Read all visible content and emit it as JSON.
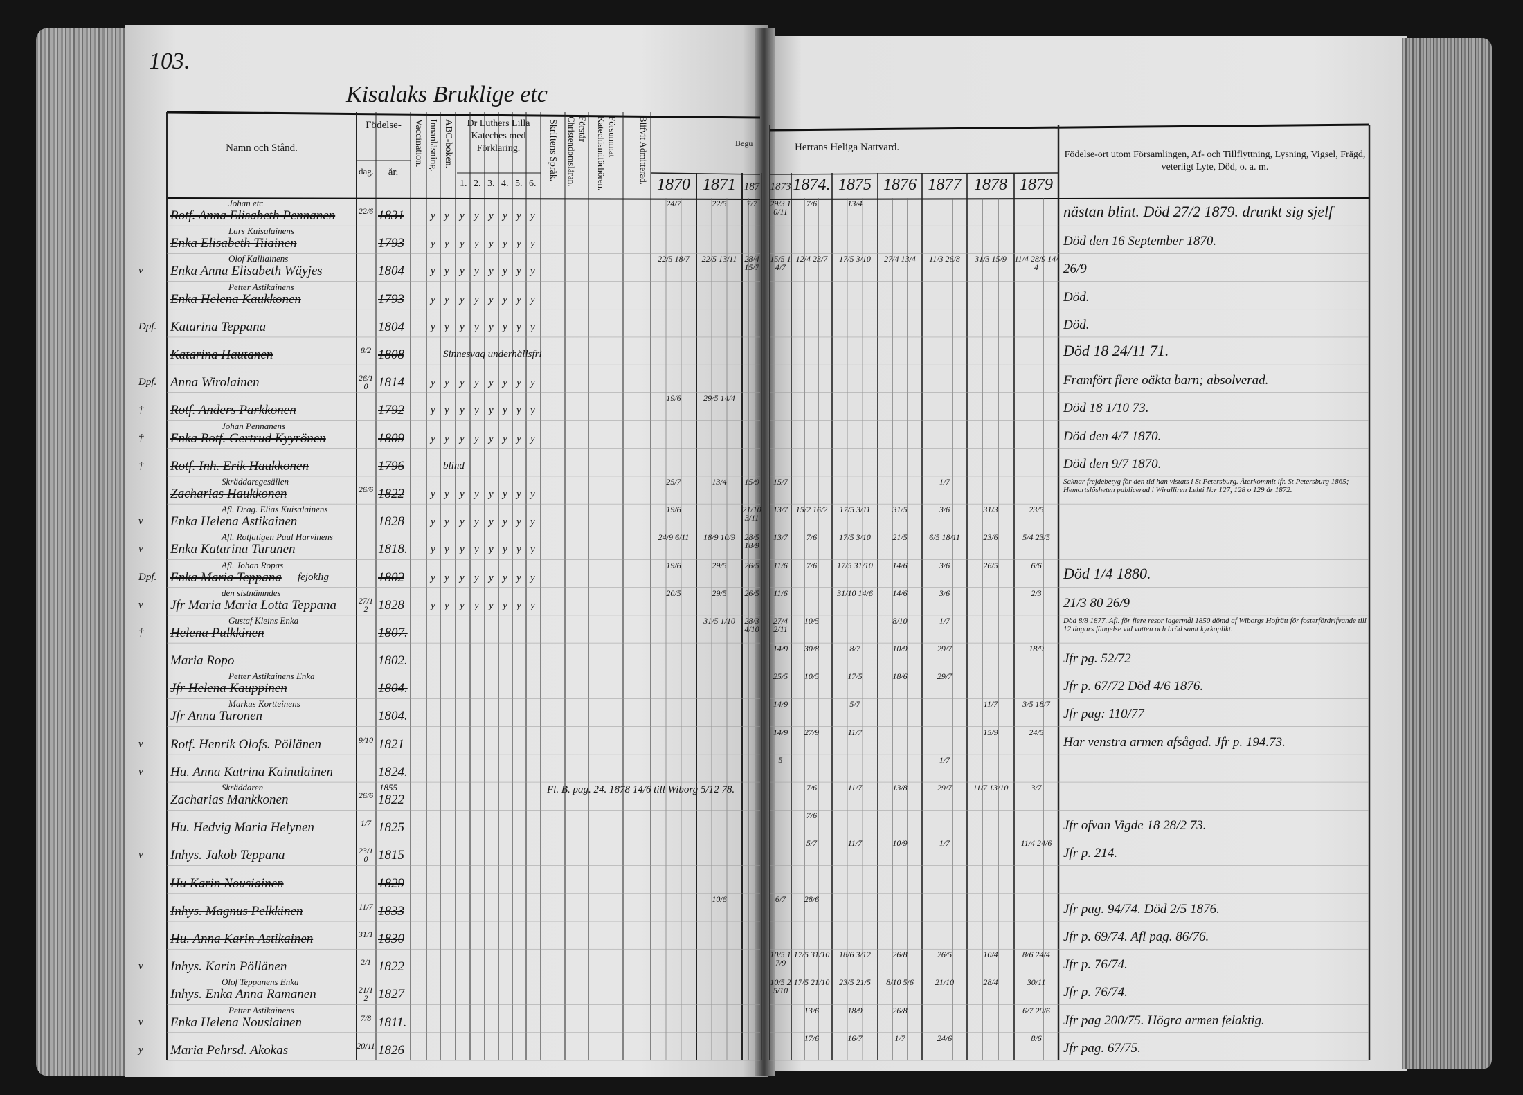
{
  "page_number": "103.",
  "title": "Kisalaks Bruklige etc",
  "header": {
    "name": "Namn och Stånd.",
    "birth": "Födelse-",
    "birth_day": "dag.",
    "birth_year": "år.",
    "vaccination": "Vaccination.",
    "innanlasning": "Innanläsning.",
    "abc": "ABC-boken.",
    "catechism": "Dr Luthers Lilla Kateches med Förklaring.",
    "catechism_parts": [
      "1.",
      "2.",
      "3.",
      "4.",
      "5.",
      "6."
    ],
    "scripture": "Skriftens Språk.",
    "christendom": "Förstår Christendomsläran.",
    "neglected": "Försummat Katechismiförhören.",
    "admitted": "Blifvit Admitterad.",
    "begun": "Begu",
    "communion": "Herrans Heliga Nattvard.",
    "years": [
      "1870",
      "1871",
      "187",
      "1873",
      "1874.",
      "1875",
      "1876",
      "1877",
      "1878",
      "1879"
    ],
    "remarks": "Födelse-ort utom Församlingen, Af- och Tillflyttning, Lysning, Vigsel, Frägd, veterligt Lyte, Död, o. a. m."
  },
  "mark": "y",
  "rows": [
    {
      "name": "Rotf. Anna Elisabeth Pennanen",
      "struck": true,
      "note": "Johan etc",
      "day": "22/6",
      "year": "1831",
      "marked": true,
      "communion": [
        "24/7",
        "22/5",
        "7/7",
        "29/3 10/11",
        "7/6",
        "13/4",
        "",
        "",
        "",
        ""
      ],
      "remark": "nästan blint. Död 27/2 1879. drunkt sig sjelf",
      "remark_style": "big"
    },
    {
      "name": "Enka Elisabeth Tiiainen",
      "struck": true,
      "note": "Lars Kuisalainens",
      "year": "1793",
      "marked": true,
      "remark": "Död den 16 September 1870."
    },
    {
      "name": "Enka Anna Elisabeth Wäyjes",
      "note": "Olof Kalliainens",
      "year": "1804",
      "marked": true,
      "margin": "v",
      "communion": [
        "22/5 18/7",
        "22/5 13/11",
        "28/4 15/7",
        "15/5 14/7",
        "12/4 23/7",
        "17/5 3/10",
        "27/4 13/4",
        "11/3 26/8",
        "31/3 15/9",
        "11/4 28/9 14/4"
      ],
      "remark": "26/9"
    },
    {
      "name": "Enka Helena Kaukkonen",
      "struck": true,
      "note": "Petter Astikainens",
      "year": "1793",
      "marked": true,
      "remark": "Död."
    },
    {
      "name": "Katarina Teppana",
      "margin": "Dpf.",
      "year": "1804",
      "marked": true,
      "remark": "Död."
    },
    {
      "name": "Katarina Hautanen",
      "struck": true,
      "day": "8/2",
      "year": "1808",
      "extra": "Sinnesvag   underhållsfri",
      "remark": "Död 18 24/11 71.",
      "remark_style": "big"
    },
    {
      "name": "Anna Wirolainen",
      "margin": "Dpf.",
      "day": "26/10",
      "year": "1814",
      "marked": true,
      "remark": "Framfört flere oäkta barn; absolverad.",
      "remark_style": "small"
    },
    {
      "name": "Rotf. Anders Parkkonen",
      "struck": true,
      "margin": "†",
      "sub": "Johan Pennanens",
      "year": "1792",
      "marked": true,
      "communion": [
        "19/6",
        "29/5 14/4",
        "",
        "",
        "",
        "",
        "",
        "",
        "",
        ""
      ],
      "remark": "Död 18 1/10 73."
    },
    {
      "name": "Enka Rotf. Gertrud Kyyrönen",
      "struck": true,
      "margin": "†",
      "year": "1809",
      "marked": true,
      "remark": "Död den 4/7 1870."
    },
    {
      "name": "Rotf. Inh. Erik Haukkonen",
      "struck": true,
      "margin": "†",
      "sub": "Skräddaregesällen",
      "year": "1796",
      "extra": "blind",
      "remark": "Död den 9/7 1870."
    },
    {
      "name": "Zacharias Haukkonen",
      "struck": true,
      "sub": "Afl. Drag. Elias Kuisalainens",
      "day": "26/6",
      "year": "1822",
      "marked": true,
      "communion": [
        "25/7",
        "13/4",
        "15/9",
        "15/7",
        "",
        "",
        "",
        "1/7",
        "",
        ""
      ],
      "remark": "Saknar frejdebetyg för den tid han vistats i St Petersburg. Återkommit ifr. St Petersburg 1865; Hemortslösheten publicerad i Wiralliren Lehti N:r 127, 128 o 129 år 1872.",
      "remark_style": "tiny"
    },
    {
      "name": "Enka Helena Astikainen",
      "sub": "Afl. Rotfatigen Paul Harvinens",
      "year": "1828",
      "marked": true,
      "margin": "v",
      "communion": [
        "19/6",
        "",
        "21/10 3/11",
        "13/7",
        "15/2 16/2",
        "17/5 3/11",
        "31/5",
        "3/6",
        "31/3",
        "23/5"
      ]
    },
    {
      "name": "Enka Katarina Turunen",
      "sub": "Afl. Johan Ropas",
      "year": "1818.",
      "marked": true,
      "margin": "v",
      "communion": [
        "24/9 6/11",
        "18/9 10/9",
        "28/5 18/9",
        "13/7",
        "7/6",
        "17/5 3/10",
        "21/5",
        "6/5 18/11",
        "23/6",
        "5/4 23/5"
      ]
    },
    {
      "name": "Enka Maria Teppana",
      "struck": true,
      "extra_name": "fejoklig",
      "margin": "Dpf.",
      "sub": "den sistnämndes",
      "year": "1802",
      "marked": true,
      "communion": [
        "19/6",
        "29/5",
        "26/5",
        "11/6",
        "7/6",
        "17/5 31/10",
        "14/6",
        "3/6",
        "26/5",
        "6/6"
      ],
      "remark": "Död 1/4 1880.",
      "remark_style": "big"
    },
    {
      "name": "Jfr Maria Maria Lotta Teppana",
      "day": "27/12",
      "year": "1828",
      "marked": true,
      "margin": "v",
      "communion": [
        "20/5",
        "29/5",
        "26/5",
        "11/6",
        "",
        "31/10 14/6",
        "14/6",
        "3/6",
        "",
        "2/3"
      ],
      "remark": "21/3 80 26/9"
    },
    {
      "name": "Helena Pulkkinen",
      "struck": true,
      "margin": "†",
      "note": "Gustaf Kleins Enka",
      "year": "1807.",
      "communion": [
        "",
        "31/5 1/10",
        "28/3 4/10",
        "27/4 2/11",
        "10/5",
        "",
        "8/10",
        "1/7",
        "",
        ""
      ],
      "remark": "Död 8/8 1877. Afl. för flere resor lagermål 1850 dömd af Wiborgs Hofrätt för fosterfördrifvande till 12 dagars fängelse vid vatten och bröd samt kyrkoplikt.",
      "remark_style": "tiny"
    },
    {
      "name": "Maria Ropo",
      "year": "1802.",
      "communion": [
        "",
        "",
        "",
        "14/9",
        "30/8",
        "8/7",
        "10/9",
        "29/7",
        "",
        "18/9"
      ],
      "remark": "Jfr pg. 52/72"
    },
    {
      "name": "Jfr Helena Kauppinen",
      "struck": true,
      "note": "Petter Astikainens Enka",
      "year": "1804.",
      "communion": [
        "",
        "",
        "",
        "25/5",
        "10/5",
        "17/5",
        "18/6",
        "29/7",
        "",
        ""
      ],
      "remark": "Jfr p. 67/72  Död 4/6 1876."
    },
    {
      "name": "Jfr Anna Turonen",
      "note": "Markus Kortteinens",
      "year": "1804.",
      "communion": [
        "",
        "",
        "",
        "14/9",
        "",
        "5/7",
        "",
        "",
        "11/7",
        "3/5 18/7"
      ],
      "remark": "Jfr pag: 110/77"
    },
    {
      "name": "Rotf. Henrik Olofs. Pöllänen",
      "day": "9/10",
      "year": "1821",
      "margin": "v",
      "communion": [
        "",
        "",
        "",
        "14/9",
        "27/9",
        "11/7",
        "",
        "",
        "15/9",
        "24/5"
      ],
      "remark": "Har venstra armen afsågad. Jfr p. 194.73."
    },
    {
      "name": "Hu. Anna Katrina Kainulainen",
      "margin": "v",
      "sub": "Skräddaren",
      "year": "1824.",
      "sub_year": "1855",
      "communion": [
        "",
        "",
        "",
        "5",
        "",
        "",
        "",
        "1/7",
        "",
        ""
      ]
    },
    {
      "name": "Zacharias Mankkonen",
      "day": "26/6",
      "year": "1822",
      "extra": "Fl. B. pag. 24.  1878 14/6  till Wiborg 5/12 78.",
      "communion": [
        "",
        "",
        "",
        "",
        "7/6",
        "11/7",
        "13/8",
        "29/7",
        "11/7 13/10",
        "3/7"
      ]
    },
    {
      "name": "Hu. Hedvig Maria Helynen",
      "day": "1/7",
      "year": "1825",
      "communion": [
        "",
        "",
        "",
        "",
        "7/6",
        "",
        "",
        "",
        "",
        ""
      ],
      "remark": "Jfr ofvan Vigde 18 28/2 73."
    },
    {
      "name": "Inhys. Jakob Teppana",
      "day": "23/10",
      "year": "1815",
      "margin": "v",
      "communion": [
        "",
        "",
        "",
        "",
        "5/7",
        "11/7",
        "10/9",
        "1/7",
        "",
        "11/4 24/6"
      ],
      "remark": "Jfr p. 214."
    },
    {
      "name": "Hu Karin Nousiainen",
      "struck": true,
      "year": "1829"
    },
    {
      "name": "Inhys. Magnus Pelkkinen",
      "struck": true,
      "day": "11/7",
      "year": "1833",
      "communion": [
        "",
        "10/6",
        "",
        "6/7",
        "28/6",
        "",
        "",
        "",
        "",
        ""
      ],
      "remark": "Jfr pag. 94/74. Död 2/5 1876."
    },
    {
      "name": "Hu. Anna Karin Astikainen",
      "struck": true,
      "day": "31/1",
      "year": "1830",
      "remark": "Jfr p. 69/74. Afl pag. 86/76."
    },
    {
      "name": "Inhys. Karin Pöllänen",
      "sub": "Olof Teppanens Enka",
      "day": "2/1",
      "year": "1822",
      "margin": "v",
      "communion": [
        "",
        "",
        "",
        "10/5 17/9",
        "17/5 31/10",
        "18/6 3/12",
        "26/8",
        "26/5",
        "10/4",
        "8/6 24/4"
      ],
      "remark": "Jfr p. 76/74."
    },
    {
      "name": "Inhys. Enka Anna Ramanen",
      "day": "21/12",
      "year": "1827",
      "communion": [
        "",
        "",
        "",
        "10/5 25/10",
        "17/5 21/10",
        "23/5 21/5",
        "8/10 5/6",
        "21/10",
        "28/4",
        "30/11"
      ],
      "remark": "Jfr p. 76/74."
    },
    {
      "name": "Enka Helena Nousiainen",
      "note": "Petter Astikainens",
      "day": "7/8",
      "year": "1811.",
      "margin": "v",
      "communion": [
        "",
        "",
        "",
        "",
        "13/6",
        "18/9",
        "26/8",
        "",
        "",
        "6/7 20/6"
      ],
      "remark": "Jfr pag 200/75.  Högra armen felaktig."
    },
    {
      "name": "Maria Pehrsd. Akokas",
      "day": "20/11",
      "year": "1826",
      "margin": "y",
      "communion": [
        "",
        "",
        "",
        "",
        "17/6",
        "16/7",
        "1/7",
        "24/6",
        "",
        "8/6"
      ],
      "remark": "Jfr pag. 67/75."
    }
  ]
}
